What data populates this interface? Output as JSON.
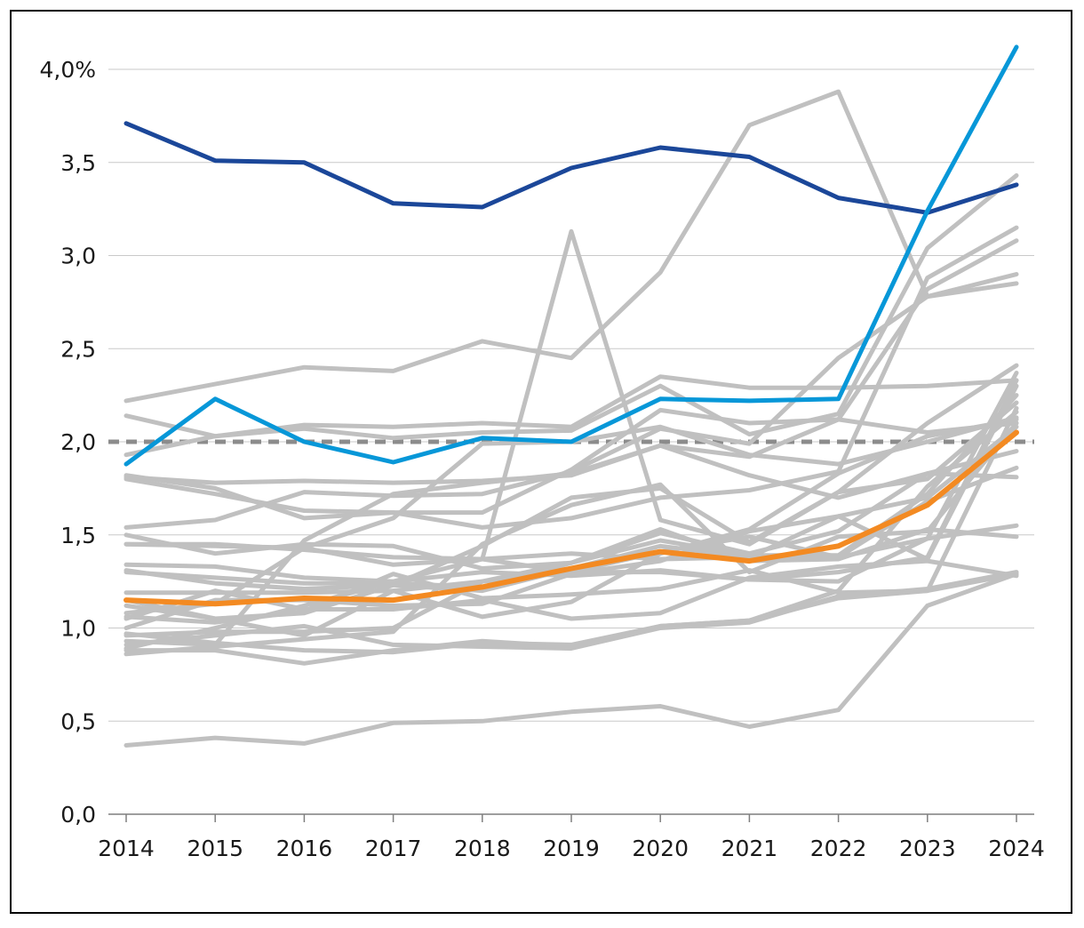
{
  "chart_data": {
    "type": "line",
    "title": "",
    "xlabel": "",
    "ylabel": "",
    "x": [
      "2014",
      "2015",
      "2016",
      "2017",
      "2018",
      "2019",
      "2020",
      "2021",
      "2022",
      "2023",
      "2024"
    ],
    "ylim": [
      0,
      4.0
    ],
    "yticks": [
      0.0,
      0.5,
      1.0,
      1.5,
      2.0,
      2.5,
      3.0,
      3.5,
      4.0
    ],
    "ytick_labels": [
      "0,0",
      "0,5",
      "1,0",
      "1,5",
      "2,0",
      "2,5",
      "3,0",
      "3,5",
      "4,0%"
    ],
    "grid": true,
    "reference_line": {
      "value": 2.0,
      "color": "#8c8c8c",
      "style": "dashed"
    },
    "colors": {
      "background_series": "#c0c0c0",
      "dark_blue": "#1b4799",
      "light_blue": "#0797d8",
      "orange": "#f38a22",
      "grid": "#c9c9c9"
    },
    "background_series": [
      [
        2.22,
        2.31,
        2.4,
        2.38,
        2.54,
        2.45,
        2.91,
        3.7,
        3.88,
        2.78,
        2.85
      ],
      [
        1.93,
        2.03,
        2.09,
        2.08,
        2.1,
        2.08,
        2.35,
        2.29,
        2.29,
        2.3,
        2.33
      ],
      [
        2.14,
        2.03,
        2.07,
        2.02,
        2.05,
        2.06,
        2.3,
        2.04,
        2.15,
        3.04,
        3.43
      ],
      [
        1.82,
        1.75,
        1.59,
        1.62,
        1.54,
        1.59,
        1.7,
        1.74,
        1.84,
        2.88,
        3.15
      ],
      [
        1.81,
        1.78,
        1.79,
        1.78,
        1.79,
        1.82,
        1.98,
        1.92,
        2.12,
        2.82,
        3.08
      ],
      [
        1.54,
        1.58,
        1.73,
        1.71,
        1.72,
        1.84,
        2.07,
        1.99,
        2.45,
        2.78,
        2.9
      ],
      [
        1.45,
        1.44,
        1.43,
        1.34,
        1.37,
        3.13,
        1.58,
        1.45,
        1.73,
        2.1,
        2.41
      ],
      [
        1.34,
        1.33,
        1.27,
        1.25,
        1.3,
        1.28,
        1.31,
        1.26,
        1.25,
        1.48,
        2.37
      ],
      [
        1.19,
        1.19,
        1.19,
        1.2,
        1.25,
        1.3,
        1.3,
        1.26,
        1.3,
        1.38,
        2.33
      ],
      [
        1.5,
        1.4,
        1.45,
        1.44,
        1.32,
        1.35,
        1.47,
        1.39,
        1.39,
        1.72,
        2.25
      ],
      [
        1.31,
        1.24,
        1.21,
        1.23,
        1.44,
        1.7,
        1.75,
        1.46,
        1.73,
        1.8,
        2.21
      ],
      [
        1.06,
        1.03,
        1.09,
        1.29,
        1.16,
        1.18,
        1.21,
        1.31,
        1.19,
        1.2,
        2.18
      ],
      [
        0.97,
        0.92,
        0.88,
        0.87,
        0.92,
        0.91,
        1.01,
        1.04,
        1.2,
        1.76,
        2.16
      ],
      [
        1.12,
        1.05,
        0.96,
        1.2,
        1.06,
        1.14,
        1.4,
        1.53,
        1.83,
        2.03,
        2.12
      ],
      [
        0.86,
        0.9,
        0.94,
        0.98,
        1.45,
        1.66,
        1.77,
        1.3,
        1.49,
        1.52,
        2.1
      ],
      [
        1.0,
        1.15,
        1.15,
        1.12,
        1.13,
        1.29,
        1.36,
        1.52,
        1.6,
        1.7,
        2.08
      ],
      [
        0.93,
        0.91,
        1.47,
        1.72,
        1.78,
        1.83,
        1.98,
        1.82,
        1.7,
        1.83,
        1.95
      ],
      [
        1.08,
        1.13,
        1.43,
        1.59,
        1.99,
        2.0,
        2.08,
        1.93,
        1.88,
        2.0,
        2.13
      ],
      [
        0.96,
        0.98,
        0.98,
        1.0,
        1.25,
        1.35,
        1.51,
        1.4,
        1.52,
        1.83,
        1.81
      ],
      [
        1.15,
        1.05,
        1.08,
        1.23,
        1.2,
        1.32,
        1.44,
        1.38,
        1.6,
        1.37,
        2.3
      ],
      [
        1.3,
        1.27,
        1.24,
        1.24,
        1.22,
        1.35,
        1.53,
        1.36,
        1.37,
        1.53,
        1.49
      ],
      [
        1.45,
        1.45,
        1.42,
        1.38,
        1.37,
        1.4,
        1.37,
        1.38,
        1.38,
        1.48,
        1.55
      ],
      [
        0.88,
        0.88,
        0.81,
        0.88,
        0.93,
        0.9,
        1.01,
        1.04,
        1.16,
        1.2,
        1.29
      ],
      [
        1.05,
        1.2,
        1.1,
        1.1,
        1.15,
        1.05,
        1.08,
        1.27,
        1.33,
        1.36,
        1.28
      ],
      [
        0.91,
        0.96,
        1.01,
        0.91,
        0.9,
        0.89,
        1.0,
        1.03,
        1.17,
        1.21,
        1.3
      ],
      [
        0.37,
        0.41,
        0.38,
        0.49,
        0.5,
        0.55,
        0.58,
        0.47,
        0.56,
        1.12,
        1.29
      ],
      [
        0.89,
        1.0,
        1.12,
        1.25,
        1.37,
        1.3,
        1.41,
        1.49,
        1.38,
        1.68,
        1.86
      ],
      [
        1.8,
        1.72,
        1.63,
        1.62,
        1.62,
        1.85,
        2.17,
        2.1,
        2.12,
        2.05,
        2.1
      ]
    ],
    "series": [
      {
        "name": "dark-blue",
        "color": "#1b4799",
        "values": [
          3.71,
          3.51,
          3.5,
          3.28,
          3.26,
          3.47,
          3.58,
          3.53,
          3.31,
          3.23,
          3.38
        ]
      },
      {
        "name": "light-blue",
        "color": "#0797d8",
        "values": [
          1.88,
          2.23,
          2.0,
          1.89,
          2.02,
          2.0,
          2.23,
          2.22,
          2.23,
          3.24,
          4.12
        ]
      },
      {
        "name": "orange",
        "color": "#f38a22",
        "values": [
          1.15,
          1.13,
          1.16,
          1.15,
          1.22,
          1.32,
          1.41,
          1.36,
          1.44,
          1.66,
          2.05
        ]
      }
    ]
  }
}
